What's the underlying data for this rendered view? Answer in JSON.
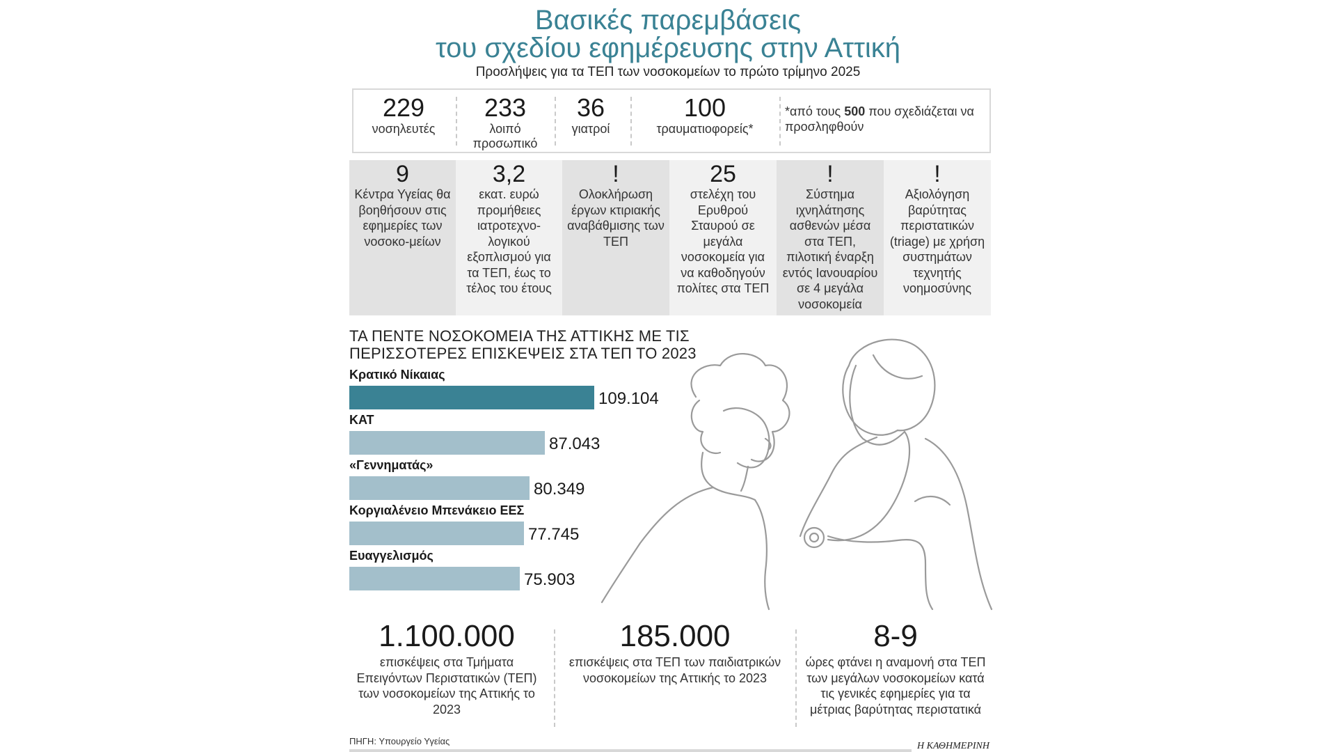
{
  "header": {
    "title_line1": "Βασικές παρεμβάσεις",
    "title_line2": "του σχεδίου εφημέρευσης στην Αττική",
    "subtitle": "Προσλήψεις για τα ΤΕΠ των νοσοκομείων το πρώτο τρίμηνο 2025"
  },
  "hires": [
    {
      "value": "229",
      "label": "νοσηλευτές"
    },
    {
      "value": "233",
      "label": "λοιπό προσωπικό"
    },
    {
      "value": "36",
      "label": "γιατροί"
    },
    {
      "value": "100",
      "label": "τραυματιοφορείς*"
    }
  ],
  "footnote": {
    "pre": "*από τους ",
    "bold": "500",
    "post": " που σχεδιάζεται να προσληφθούν"
  },
  "measures": [
    {
      "num": "9",
      "text": "Κέντρα Υγείας θα βοηθήσουν στις εφημερίες των νοσοκο-μείων"
    },
    {
      "num": "3,2",
      "text": "εκατ. ευρώ προμήθειες ιατροτεχνο-λογικού εξοπλισμού για τα ΤΕΠ, έως το τέλος του έτους"
    },
    {
      "num": "!",
      "text": "Ολοκλήρωση έργων κτιριακής αναβάθμισης των ΤΕΠ"
    },
    {
      "num": "25",
      "text": "στελέχη του Ερυθρού Σταυρού σε μεγάλα νοσοκομεία για να καθοδηγούν πολίτες στα ΤΕΠ"
    },
    {
      "num": "!",
      "text": "Σύστημα ιχνηλάτησης ασθενών μέσα στα ΤΕΠ, πιλοτική έναρξη εντός Ιανουαρίου σε 4 μεγάλα νοσοκομεία"
    },
    {
      "num": "!",
      "text": "Αξιολόγηση βαρύτητας περιστατικών (triage) με χρήση συστημάτων τεχνητής νοημοσύνης"
    }
  ],
  "chart_data": {
    "type": "bar",
    "orientation": "horizontal",
    "title": "ΤΑ ΠΕΝΤΕ ΝΟΣΟΚΟΜΕΙΑ ΤΗΣ ΑΤΤΙΚΗΣ ΜΕ ΤΙΣ ΠΕΡΙΣΣΟΤΕΡΕΣ ΕΠΙΣΚΕΨΕΙΣ ΣΤΑ ΤΕΠ ΤΟ 2023",
    "categories": [
      "Κρατικό Νίκαιας",
      "ΚΑΤ",
      "«Γεννηματάς»",
      "Κοργιαλένειο Μπενάκειο ΕΕΣ",
      "Ευαγγελισμός"
    ],
    "values": [
      109104,
      87043,
      80349,
      77745,
      75903
    ],
    "value_labels": [
      "109.104",
      "87.043",
      "80.349",
      "77.745",
      "75.903"
    ],
    "colors": [
      "#3a8294",
      "#a3bfcb",
      "#a3bfcb",
      "#a3bfcb",
      "#a3bfcb"
    ],
    "grid": false
  },
  "bottom_stats": [
    {
      "num": "1.100.000",
      "text": "επισκέψεις στα Τμήματα Επειγόντων Περιστατικών (ΤΕΠ) των νοσοκομείων της Αττικής το 2023"
    },
    {
      "num": "185.000",
      "text": "επισκέψεις στα ΤΕΠ των παιδιατρικών νοσοκομείων της Αττικής το 2023"
    },
    {
      "num": "8-9",
      "text": "ώρες φτάνει η αναμονή στα ΤΕΠ των μεγάλων νοσοκομείων κατά τις γενικές εφημερίες για τα μέτριας βαρύτητας περιστατικά"
    }
  ],
  "source": "ΠΗΓΗ: Υπουργείο Υγείας",
  "brand": "Η ΚΑΘΗΜΕΡΙΝΗ"
}
